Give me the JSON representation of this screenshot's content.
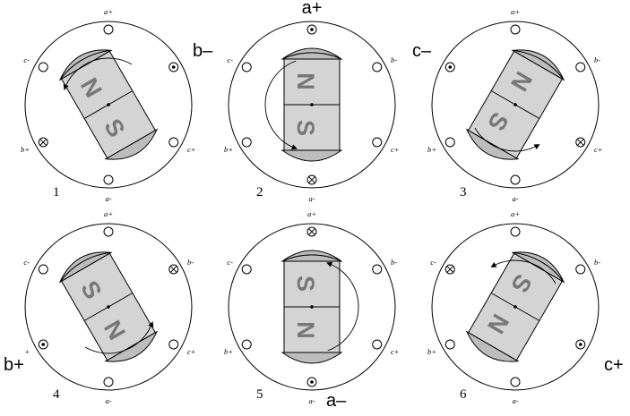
{
  "side_labels": {
    "b_minus": "b–",
    "a_plus": "a+",
    "c_minus": "c–",
    "b_plus": "b+",
    "a_minus": "a–",
    "c_plus": "c+"
  },
  "steps": [
    {
      "number": "1",
      "rotor_angle_deg": -30,
      "pole_top_half": "N",
      "pole_bottom_half": "S",
      "labels": {
        "a_top": "a+",
        "a_bottom": "a-",
        "b_right": "",
        "b_left": "b+",
        "c_left": "c-",
        "c_right": "c+"
      },
      "current_marks": {
        "right_upper": "dot",
        "left_lower": "cross"
      },
      "arrow": "ccw-upper-left"
    },
    {
      "number": "2",
      "rotor_angle_deg": 0,
      "pole_top_half": "N",
      "pole_bottom_half": "S",
      "labels": {
        "a_top": "",
        "a_bottom": "a-",
        "b_right": "b-",
        "b_left": "b+",
        "c_left": "c-",
        "c_right": "c+"
      },
      "current_marks": {
        "top": "dot",
        "bottom": "cross"
      },
      "arrow": "ccw-left"
    },
    {
      "number": "3",
      "rotor_angle_deg": 30,
      "pole_top_half": "N",
      "pole_bottom_half": "S",
      "labels": {
        "a_top": "a+",
        "a_bottom": "a-",
        "b_right": "b-",
        "b_left": "b+",
        "c_left": "",
        "c_right": "c+"
      },
      "current_marks": {
        "left_upper": "dot",
        "right_lower": "cross"
      },
      "arrow": "ccw-lower"
    },
    {
      "number": "4",
      "rotor_angle_deg": -30,
      "pole_top_half": "S",
      "pole_bottom_half": "N",
      "labels": {
        "a_top": "a+",
        "a_bottom": "a-",
        "b_right": "b-",
        "b_left": "+",
        "c_left": "c-",
        "c_right": "c+"
      },
      "current_marks": {
        "right_upper": "cross",
        "left_lower": "dot"
      },
      "arrow": "ccw-lower-right"
    },
    {
      "number": "5",
      "rotor_angle_deg": 0,
      "pole_top_half": "S",
      "pole_bottom_half": "N",
      "labels": {
        "a_top": "a+",
        "a_bottom": "a-",
        "b_right": "b-",
        "b_left": "b+",
        "c_left": "c-",
        "c_right": "c+"
      },
      "current_marks": {
        "top": "cross",
        "bottom": "dot"
      },
      "arrow": "ccw-right"
    },
    {
      "number": "6",
      "rotor_angle_deg": 30,
      "pole_top_half": "S",
      "pole_bottom_half": "N",
      "labels": {
        "a_top": "a+",
        "a_bottom": "a-",
        "b_right": "b-",
        "b_left": "b+",
        "c_left": "c-",
        "c_right": ""
      },
      "current_marks": {
        "left_upper": "cross",
        "right_lower": "dot"
      },
      "arrow": "ccw-upper"
    }
  ]
}
